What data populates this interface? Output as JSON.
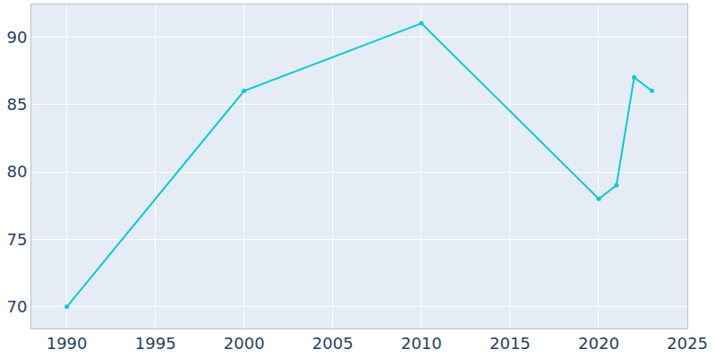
{
  "chart_data": {
    "type": "line",
    "x": [
      1990,
      2000,
      2010,
      2020,
      2021,
      2022,
      2023
    ],
    "values": [
      70,
      86,
      91,
      78,
      79,
      87,
      86
    ],
    "color": "#00ced1",
    "marker": "circle",
    "xlim": [
      1988,
      2025
    ],
    "xticks": [
      1990,
      1995,
      2000,
      2005,
      2010,
      2015,
      2020,
      2025
    ],
    "ylim": [
      68.4,
      92.4
    ],
    "yticks": [
      70,
      75,
      80,
      85,
      90
    ],
    "grid": true
  }
}
